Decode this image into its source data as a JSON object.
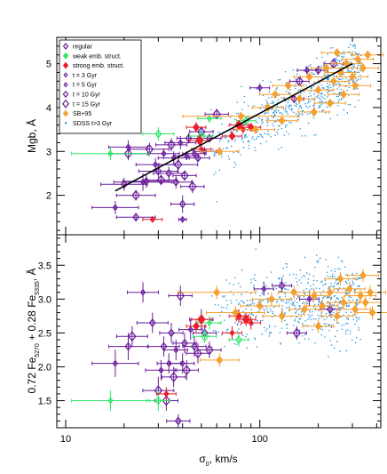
{
  "chart_data": [
    {
      "type": "scatter",
      "panel": "top",
      "xlabel": "σ0, km/s",
      "ylabel": "Mgb, Å",
      "xscale": "log",
      "xlim": [
        9,
        420
      ],
      "ylim": [
        1.1,
        5.6
      ],
      "yticks": [
        "2",
        "3",
        "4",
        "5"
      ],
      "legend": {
        "placement": "top-left",
        "entries": [
          {
            "label": "regular",
            "color": "#6a1b9a",
            "marker": "diamond"
          },
          {
            "label": "weak emb. struct.",
            "color": "#2ee86b",
            "marker": "diamond"
          },
          {
            "label": "strong emb. struct.",
            "color": "#e8202a",
            "marker": "diamond"
          },
          {
            "label": "t = 3 Gyr",
            "color": "#6a1b9a",
            "marker": "diamond-small"
          },
          {
            "label": "t = 5 Gyr",
            "color": "#6a1b9a",
            "marker": "diamond-small"
          },
          {
            "label": "t = 10 Gyr",
            "color": "#6a1b9a",
            "marker": "diamond-medium"
          },
          {
            "label": "t = 15 Gyr",
            "color": "#6a1b9a",
            "marker": "diamond-large"
          },
          {
            "label": "SB+95",
            "color": "#f5a030",
            "marker": "diamond"
          },
          {
            "label": "SDSS t>3 Gyr",
            "color": "#1e90d8",
            "marker": "dot"
          }
        ]
      },
      "fit_line": {
        "x": [
          18,
          300
        ],
        "y": [
          2.1,
          5.0
        ],
        "color": "#000000"
      },
      "series": [
        {
          "name": "regular",
          "color": "#6a1b9a",
          "points": [
            [
              18,
              1.72,
              0.12,
              0.15
            ],
            [
              20,
              2.25,
              0.12,
              0.15
            ],
            [
              21,
              2.95,
              0.1,
              0.15
            ],
            [
              21,
              3.1,
              0.1,
              0.15
            ],
            [
              23,
              1.5,
              0.1,
              0.1
            ],
            [
              23,
              2.0,
              0.1,
              0.12
            ],
            [
              25,
              2.3,
              0.15,
              0.2
            ],
            [
              26,
              2.32,
              0.12,
              0.15
            ],
            [
              27,
              3.05,
              0.1,
              0.15
            ],
            [
              29,
              2.7,
              0.1,
              0.15
            ],
            [
              30,
              2.55,
              0.1,
              0.15
            ],
            [
              31,
              2.35,
              0.08,
              0.12
            ],
            [
              32,
              2.95,
              0.08,
              0.12
            ],
            [
              34,
              2.5,
              0.08,
              0.15
            ],
            [
              35,
              3.15,
              0.08,
              0.15
            ],
            [
              36,
              2.85,
              0.08,
              0.15
            ],
            [
              37,
              2.3,
              0.08,
              0.15
            ],
            [
              38,
              2.7,
              0.1,
              0.2
            ],
            [
              39,
              3.2,
              0.08,
              0.15
            ],
            [
              40,
              1.8,
              0.06,
              0.2
            ],
            [
              41,
              2.45,
              0.06,
              0.1
            ],
            [
              42,
              2.9,
              0.06,
              0.1
            ],
            [
              43,
              3.3,
              0.06,
              0.12
            ],
            [
              45,
              2.2,
              0.06,
              0.15
            ],
            [
              46,
              2.95,
              0.06,
              0.1
            ],
            [
              48,
              2.85,
              0.06,
              0.1
            ],
            [
              50,
              3.45,
              0.06,
              0.12
            ],
            [
              52,
              3.0,
              0.06,
              0.1
            ],
            [
              55,
              3.3,
              0.06,
              0.1
            ],
            [
              60,
              3.85,
              0.06,
              0.12
            ],
            [
              100,
              4.45,
              0.05,
              0.1
            ],
            [
              150,
              4.2,
              0.05,
              0.1
            ],
            [
              160,
              4.6,
              0.05,
              0.1
            ],
            [
              175,
              4.85,
              0.05,
              0.1
            ],
            [
              200,
              4.85,
              0.05,
              0.1
            ],
            [
              240,
              5.0,
              0.05,
              0.1
            ],
            [
              40,
              1.45,
              0.02,
              0.05
            ]
          ]
        },
        {
          "name": "weak emb. struct.",
          "color": "#2ee86b",
          "points": [
            [
              17,
              2.95,
              0.2,
              0.15
            ],
            [
              30,
              3.4,
              0.08,
              0.15
            ],
            [
              50,
              3.35,
              0.06,
              0.1
            ],
            [
              55,
              3.75,
              0.06,
              0.1
            ],
            [
              85,
              3.7,
              0.05,
              0.1
            ]
          ]
        },
        {
          "name": "strong emb. struct.",
          "color": "#e8202a",
          "points": [
            [
              28,
              1.45,
              0.05,
              0.05
            ],
            [
              47,
              3.55,
              0.05,
              0.12
            ],
            [
              49,
              3.25,
              0.05,
              0.12
            ],
            [
              50,
              3.05,
              0.05,
              0.1
            ],
            [
              72,
              3.35,
              0.05,
              0.1
            ],
            [
              78,
              3.6,
              0.05,
              0.1
            ],
            [
              82,
              3.5,
              0.05,
              0.1
            ],
            [
              90,
              3.55,
              0.05,
              0.1
            ]
          ]
        },
        {
          "name": "SB+95",
          "color": "#f5a030",
          "points": [
            [
              62,
              3.0,
              0.1,
              0.1
            ],
            [
              80,
              3.8,
              0.3,
              0.1
            ],
            [
              95,
              3.5,
              0.1,
              0.1
            ],
            [
              110,
              4.0,
              0.08,
              0.1
            ],
            [
              120,
              4.3,
              0.08,
              0.1
            ],
            [
              140,
              4.5,
              0.08,
              0.1
            ],
            [
              160,
              4.2,
              0.08,
              0.1
            ],
            [
              180,
              4.7,
              0.08,
              0.1
            ],
            [
              200,
              4.4,
              0.08,
              0.1
            ],
            [
              220,
              4.9,
              0.08,
              0.1
            ],
            [
              240,
              4.6,
              0.08,
              0.1
            ],
            [
              260,
              4.8,
              0.08,
              0.1
            ],
            [
              280,
              5.0,
              0.08,
              0.1
            ],
            [
              300,
              4.7,
              0.08,
              0.1
            ],
            [
              320,
              5.1,
              0.08,
              0.1
            ],
            [
              340,
              4.9,
              0.08,
              0.1
            ],
            [
              360,
              5.2,
              0.08,
              0.1
            ],
            [
              270,
              4.3,
              0.08,
              0.1
            ],
            [
              230,
              4.1,
              0.08,
              0.1
            ],
            [
              190,
              3.9,
              0.08,
              0.1
            ],
            [
              130,
              3.7,
              0.08,
              0.1
            ],
            [
              250,
              5.25,
              0.08,
              0.1
            ],
            [
              310,
              4.5,
              0.08,
              0.1
            ]
          ]
        }
      ],
      "sdss_cloud": {
        "name": "SDSS t>3 Gyr",
        "color": "#1e90d8",
        "x_range": [
          55,
          330
        ],
        "trend": [
          [
            55,
            3.0
          ],
          [
            330,
            5.0
          ]
        ],
        "scatter": 0.35
      }
    },
    {
      "type": "scatter",
      "panel": "bottom",
      "xlabel": "σ0, km/s",
      "ylabel": "0.72 Fe5270 + 0.28 Fe5335, Å",
      "xscale": "log",
      "xlim": [
        9,
        420
      ],
      "ylim": [
        1.1,
        3.95
      ],
      "xticks": [
        "10",
        "100"
      ],
      "yticks": [
        "1.5",
        "2.0",
        "2.5",
        "3.0",
        "3.5"
      ],
      "series": [
        {
          "name": "regular",
          "color": "#6a1b9a",
          "points": [
            [
              18,
              2.05,
              0.12,
              0.2
            ],
            [
              21,
              2.3,
              0.1,
              0.2
            ],
            [
              22,
              2.45,
              0.08,
              0.15
            ],
            [
              25,
              3.1,
              0.08,
              0.15
            ],
            [
              28,
              2.65,
              0.08,
              0.15
            ],
            [
              30,
              1.65,
              0.08,
              0.2
            ],
            [
              31,
              1.95,
              0.08,
              0.15
            ],
            [
              32,
              2.3,
              0.08,
              0.15
            ],
            [
              33,
              1.5,
              0.06,
              0.15
            ],
            [
              34,
              2.05,
              0.06,
              0.15
            ],
            [
              35,
              2.5,
              0.06,
              0.15
            ],
            [
              36,
              1.85,
              0.06,
              0.15
            ],
            [
              37,
              2.25,
              0.06,
              0.15
            ],
            [
              38,
              1.2,
              0.06,
              0.1
            ],
            [
              39,
              3.05,
              0.06,
              0.15
            ],
            [
              40,
              2.05,
              0.06,
              0.15
            ],
            [
              41,
              2.35,
              0.06,
              0.15
            ],
            [
              42,
              1.95,
              0.06,
              0.15
            ],
            [
              44,
              2.55,
              0.06,
              0.15
            ],
            [
              46,
              2.3,
              0.06,
              0.15
            ],
            [
              48,
              2.2,
              0.06,
              0.15
            ],
            [
              50,
              2.7,
              0.06,
              0.15
            ],
            [
              52,
              2.5,
              0.06,
              0.12
            ],
            [
              55,
              2.25,
              0.06,
              0.12
            ],
            [
              105,
              3.15,
              0.05,
              0.1
            ],
            [
              130,
              3.2,
              0.05,
              0.1
            ],
            [
              155,
              2.5,
              0.05,
              0.1
            ],
            [
              180,
              3.0,
              0.05,
              0.1
            ],
            [
              230,
              2.85,
              0.05,
              0.1
            ]
          ]
        },
        {
          "name": "weak emb. struct.",
          "color": "#2ee86b",
          "points": [
            [
              17,
              1.5,
              0.2,
              0.15
            ],
            [
              30,
              1.5,
              0.06,
              0.15
            ],
            [
              52,
              2.45,
              0.06,
              0.1
            ],
            [
              55,
              2.65,
              0.06,
              0.1
            ],
            [
              78,
              2.4,
              0.05,
              0.1
            ]
          ]
        },
        {
          "name": "strong emb. struct.",
          "color": "#e8202a",
          "points": [
            [
              33,
              1.6,
              0.05,
              0.1
            ],
            [
              47,
              2.6,
              0.05,
              0.1
            ],
            [
              50,
              2.7,
              0.05,
              0.1
            ],
            [
              72,
              2.5,
              0.05,
              0.1
            ],
            [
              78,
              2.75,
              0.05,
              0.1
            ],
            [
              85,
              2.7,
              0.05,
              0.1
            ],
            [
              90,
              2.65,
              0.05,
              0.1
            ]
          ]
        },
        {
          "name": "SB+95",
          "color": "#f5a030",
          "points": [
            [
              60,
              3.1,
              0.2,
              0.1
            ],
            [
              62,
              2.1,
              0.1,
              0.1
            ],
            [
              75,
              2.8,
              0.15,
              0.1
            ],
            [
              100,
              2.9,
              0.1,
              0.1
            ],
            [
              115,
              3.0,
              0.1,
              0.1
            ],
            [
              130,
              2.75,
              0.1,
              0.1
            ],
            [
              150,
              3.1,
              0.08,
              0.1
            ],
            [
              170,
              2.85,
              0.08,
              0.1
            ],
            [
              190,
              3.05,
              0.08,
              0.1
            ],
            [
              210,
              2.9,
              0.08,
              0.1
            ],
            [
              230,
              3.1,
              0.08,
              0.1
            ],
            [
              250,
              2.75,
              0.08,
              0.1
            ],
            [
              270,
              2.95,
              0.08,
              0.1
            ],
            [
              290,
              3.15,
              0.08,
              0.1
            ],
            [
              310,
              2.85,
              0.08,
              0.1
            ],
            [
              330,
              3.05,
              0.08,
              0.1
            ],
            [
              350,
              2.95,
              0.08,
              0.1
            ],
            [
              370,
              3.1,
              0.08,
              0.1
            ],
            [
              380,
              2.8,
              0.08,
              0.1
            ],
            [
              260,
              3.3,
              0.08,
              0.1
            ],
            [
              200,
              2.6,
              0.08,
              0.1
            ],
            [
              340,
              3.35,
              0.08,
              0.1
            ]
          ]
        }
      ],
      "sdss_cloud": {
        "name": "SDSS t>3 Gyr",
        "color": "#1e90d8",
        "x_range": [
          55,
          330
        ],
        "trend": [
          [
            55,
            2.8
          ],
          [
            330,
            3.0
          ]
        ],
        "scatter": 0.28
      }
    }
  ]
}
